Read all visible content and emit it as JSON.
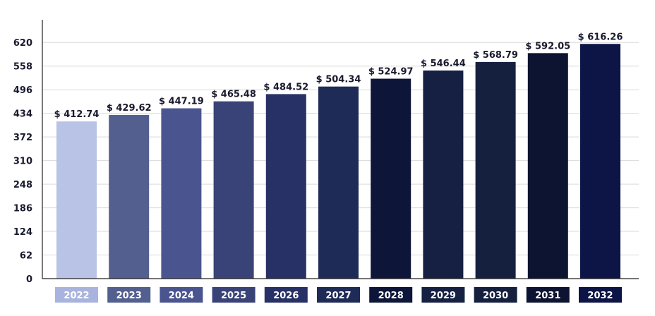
{
  "chart_data": {
    "type": "bar",
    "categories": [
      "2022",
      "2023",
      "2024",
      "2025",
      "2026",
      "2027",
      "2028",
      "2029",
      "2030",
      "2031",
      "2032"
    ],
    "values": [
      412.74,
      429.62,
      447.19,
      465.48,
      484.52,
      504.34,
      524.97,
      546.44,
      568.79,
      592.05,
      616.26
    ],
    "data_labels": [
      "$ 412.74",
      "$ 429.62",
      "$ 447.19",
      "$ 465.48",
      "$ 484.52",
      "$ 504.34",
      "$ 524.97",
      "$ 546.44",
      "$ 568.79",
      "$ 592.05",
      "$ 616.26"
    ],
    "yticks": [
      0,
      62,
      124,
      186,
      248,
      310,
      372,
      434,
      496,
      558,
      620
    ],
    "ylim": [
      0,
      676
    ],
    "title": "",
    "xlabel": "",
    "ylabel": "",
    "grid": true,
    "legend": "none",
    "bar_colors": [
      "#b9c3e6",
      "#535f8e",
      "#4a5590",
      "#394378",
      "#283166",
      "#1f2b57",
      "#0d1638",
      "#152042",
      "#15203f",
      "#0d1431",
      "#0d1547"
    ],
    "label_box_colors": [
      "#a9b4de",
      "#535f8e",
      "#4a5590",
      "#394378",
      "#283166",
      "#1f2b57",
      "#0d1638",
      "#152042",
      "#15203f",
      "#0d1431",
      "#0d1547"
    ]
  }
}
